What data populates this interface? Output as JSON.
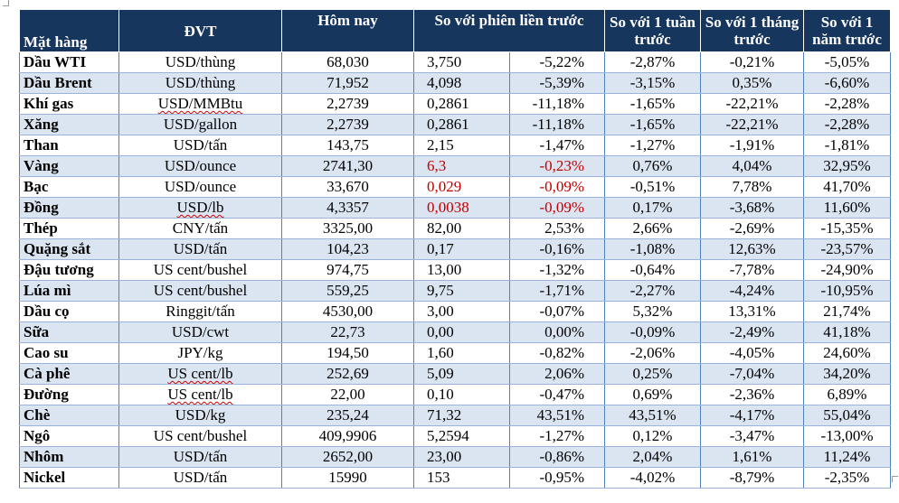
{
  "table": {
    "headers": {
      "item": "Mặt hàng",
      "unit": "ĐVT",
      "today": "Hôm nay",
      "prev_session": "So với phiên liền trước",
      "week": "So với 1 tuần trước",
      "month": "So với 1 tháng trước",
      "year": "So với 1 năm trước"
    },
    "rows": [
      {
        "name": "Dầu WTI",
        "unit": "USD/thùng",
        "today": "68,030",
        "change": "3,750",
        "change_pct": "-5,22%",
        "week": "-2,87%",
        "month": "-0,21%",
        "year": "-5,05%"
      },
      {
        "name": "Dầu Brent",
        "unit": "USD/thùng",
        "today": "71,952",
        "change": "4,098",
        "change_pct": "-5,39%",
        "week": "-3,15%",
        "month": "0,35%",
        "year": "-6,60%"
      },
      {
        "name": "Khí gas",
        "unit": "USD/MMBtu",
        "today": "2,2739",
        "change": "0,2861",
        "change_pct": "-11,18%",
        "week": "-1,65%",
        "month": "-22,21%",
        "year": "-2,28%"
      },
      {
        "name": "Xăng",
        "unit": "USD/gallon",
        "today": "2,2739",
        "change": "0,2861",
        "change_pct": "-11,18%",
        "week": "-1,65%",
        "month": "-22,21%",
        "year": "-2,28%"
      },
      {
        "name": "Than",
        "unit": "USD/tấn",
        "today": "143,75",
        "change": "2,15",
        "change_pct": "-1,47%",
        "week": "-1,27%",
        "month": "-1,91%",
        "year": "-1,81%"
      },
      {
        "name": "Vàng",
        "unit": "USD/ounce",
        "today": "2741,30",
        "change": "6,3",
        "change_pct": "-0,23%",
        "week": "0,76%",
        "month": "4,04%",
        "year": "32,95%"
      },
      {
        "name": "Bạc",
        "unit": "USD/ounce",
        "today": "33,670",
        "change": "0,029",
        "change_pct": "-0,09%",
        "week": "-0,51%",
        "month": "7,78%",
        "year": "41,70%"
      },
      {
        "name": "Đồng",
        "unit": "USD/lb",
        "today": "4,3357",
        "change": "0,0038",
        "change_pct": "-0,09%",
        "week": "0,17%",
        "month": "-3,68%",
        "year": "11,60%"
      },
      {
        "name": "Thép",
        "unit": "CNY/tấn",
        "today": "3325,00",
        "change": "82,00",
        "change_pct": "2,53%",
        "week": "2,66%",
        "month": "-2,69%",
        "year": "-15,35%"
      },
      {
        "name": "Quặng sắt",
        "unit": "USD/tấn",
        "today": "104,23",
        "change": "0,17",
        "change_pct": "-0,16%",
        "week": "-1,08%",
        "month": "12,63%",
        "year": "-23,57%"
      },
      {
        "name": "Đậu tương",
        "unit": "US cent/bushel",
        "today": "974,75",
        "change": "13,00",
        "change_pct": "-1,32%",
        "week": "-0,64%",
        "month": "-7,78%",
        "year": "-24,90%"
      },
      {
        "name": "Lúa mì",
        "unit": "US cent/bushel",
        "today": "559,25",
        "change": "9,75",
        "change_pct": "-1,71%",
        "week": "-2,27%",
        "month": "-4,24%",
        "year": "-10,95%"
      },
      {
        "name": "Dầu cọ",
        "unit": "Ringgit/tấn",
        "today": "4530,00",
        "change": "3,00",
        "change_pct": "-0,07%",
        "week": "5,32%",
        "month": "13,31%",
        "year": "21,74%"
      },
      {
        "name": "Sữa",
        "unit": "USD/cwt",
        "today": "22,73",
        "change": "0,00",
        "change_pct": "0,00%",
        "week": "-0,09%",
        "month": "-2,49%",
        "year": "41,18%"
      },
      {
        "name": "Cao su",
        "unit": "JPY/kg",
        "today": "194,50",
        "change": "1,60",
        "change_pct": "-0,82%",
        "week": "-2,06%",
        "month": "-4,05%",
        "year": "24,60%"
      },
      {
        "name": "Cà phê",
        "unit": "US cent/lb",
        "today": "252,69",
        "change": "5,09",
        "change_pct": "2,06%",
        "week": "0,25%",
        "month": "-7,04%",
        "year": "34,20%"
      },
      {
        "name": "Đường",
        "unit": "US cent/lb",
        "today": "22,00",
        "change": "0,10",
        "change_pct": "-0,47%",
        "week": "0,69%",
        "month": "-2,36%",
        "year": "6,89%"
      },
      {
        "name": "Chè",
        "unit": "USD/kg",
        "today": "235,24",
        "change": "71,32",
        "change_pct": "43,51%",
        "week": "43,51%",
        "month": "-4,17%",
        "year": "55,04%"
      },
      {
        "name": "Ngô",
        "unit": "US cent/bushel",
        "today": "409,9906",
        "change": "5,2594",
        "change_pct": "-1,27%",
        "week": "0,12%",
        "month": "-3,47%",
        "year": "-13,00%"
      },
      {
        "name": "Nhôm",
        "unit": "USD/tấn",
        "today": "2652,00",
        "change": "23,00",
        "change_pct": "-0,86%",
        "week": "2,04%",
        "month": "1,61%",
        "year": "11,24%"
      },
      {
        "name": "Nickel",
        "unit": "USD/tấn",
        "today": "15990",
        "change": "153",
        "change_pct": "-0,95%",
        "week": "-4,02%",
        "month": "-8,79%",
        "year": "-2,35%"
      }
    ]
  },
  "colors": {
    "header_bg": "#17365d",
    "header_text": "#ffffff",
    "row_alt_bg": "#dbe5f1",
    "row_bg": "#ffffff",
    "highlight_text": "#c00000",
    "border": "#4f81bd"
  }
}
